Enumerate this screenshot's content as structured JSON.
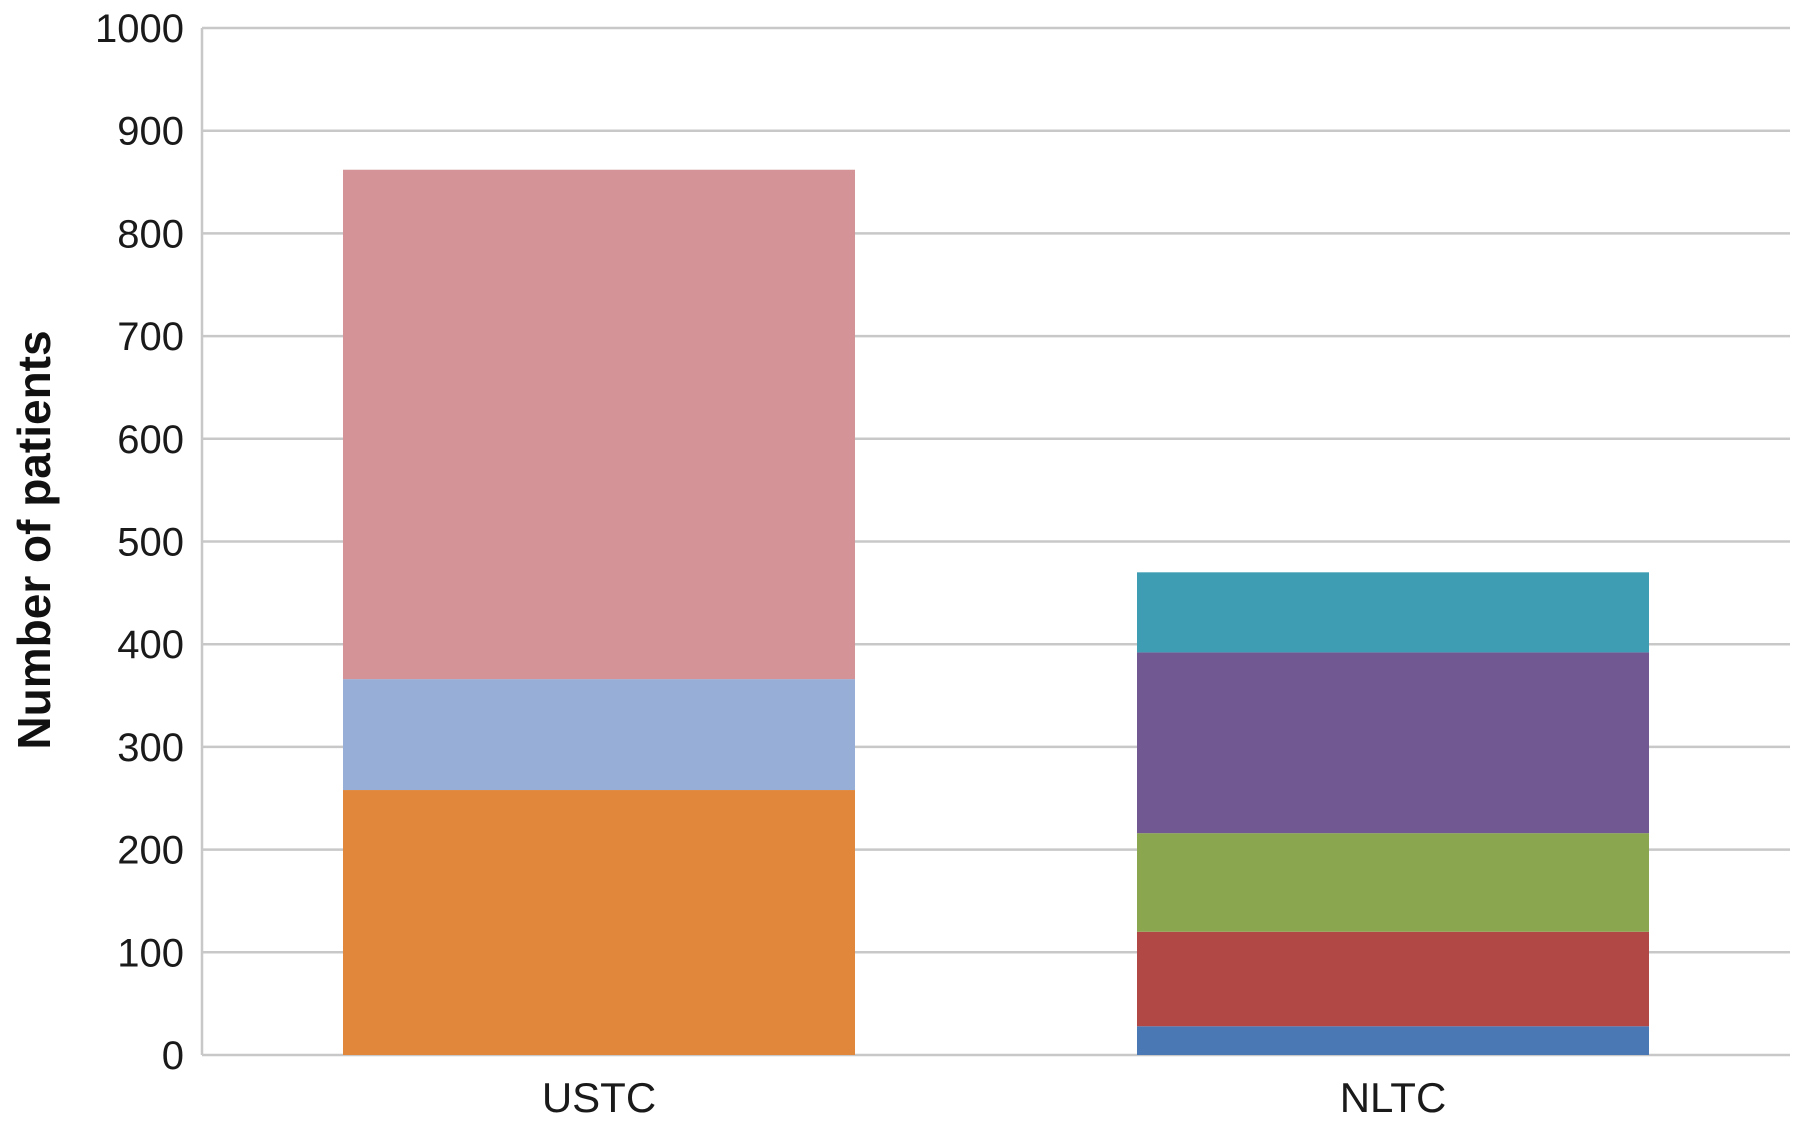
{
  "chart_data": {
    "type": "bar",
    "stacked": true,
    "title": "",
    "xlabel": "",
    "ylabel": "Number of patients",
    "ylim": [
      0,
      1000
    ],
    "yticks": [
      0,
      100,
      200,
      300,
      400,
      500,
      600,
      700,
      800,
      900,
      1000
    ],
    "grid": true,
    "legend": "none",
    "categories": [
      "USTC",
      "NLTC"
    ],
    "series": [
      {
        "color": "#4a78b5",
        "values": [
          0,
          28
        ]
      },
      {
        "color": "#b24846",
        "values": [
          0,
          92
        ]
      },
      {
        "color": "#8aa64f",
        "values": [
          0,
          96
        ]
      },
      {
        "color": "#715893",
        "values": [
          0,
          176
        ]
      },
      {
        "color": "#3f9db3",
        "values": [
          0,
          78
        ]
      },
      {
        "color": "#e0873b",
        "values": [
          258,
          0
        ]
      },
      {
        "color": "#97afd7",
        "values": [
          108,
          0
        ]
      },
      {
        "color": "#d49497",
        "values": [
          496,
          0
        ]
      }
    ]
  }
}
